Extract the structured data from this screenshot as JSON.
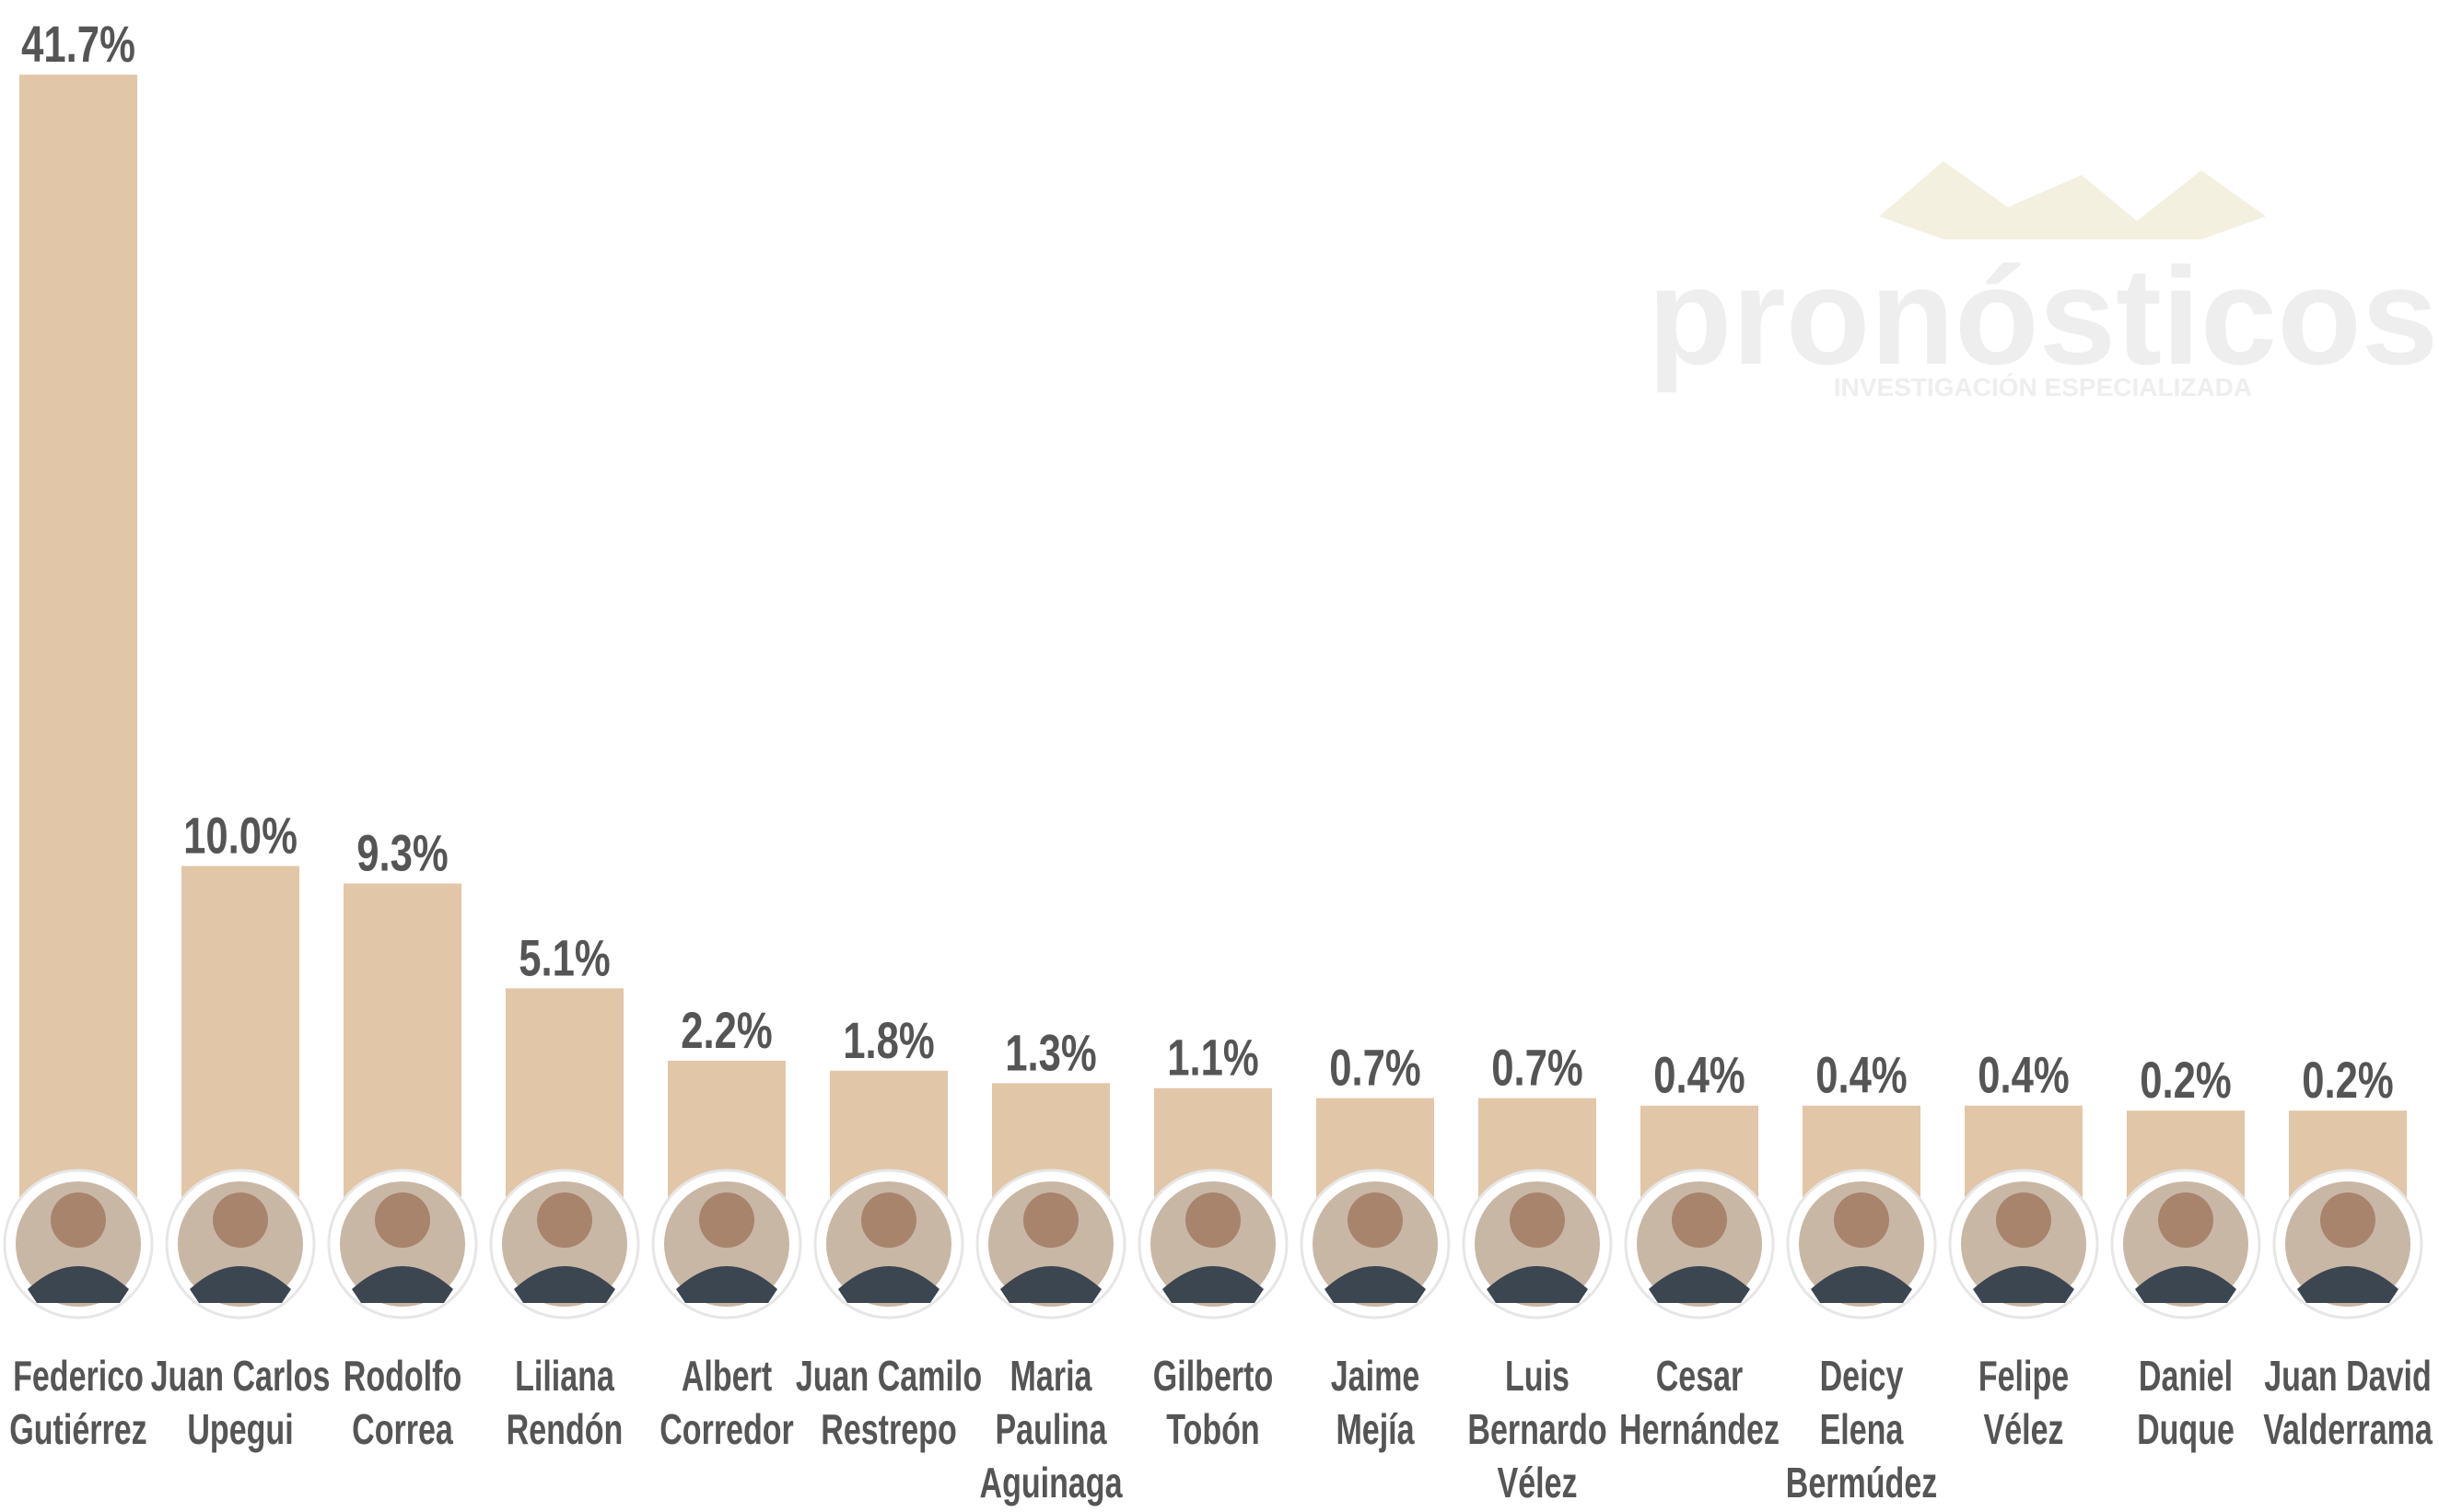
{
  "chart_data": {
    "type": "bar",
    "watermark": {
      "title": "pronósticos",
      "subtitle": "INVESTIGACIÓN ESPECIALIZADA"
    },
    "categories": [
      [
        "Federico",
        "Gutiérrez"
      ],
      [
        "Juan Carlos",
        "Upegui"
      ],
      [
        "Rodolfo",
        "Correa"
      ],
      [
        "Liliana",
        "Rendón"
      ],
      [
        "Albert",
        "Corredor"
      ],
      [
        "Juan Camilo",
        "Restrepo"
      ],
      [
        "Maria",
        "Paulina",
        "Aguinaga"
      ],
      [
        "Gilberto",
        "Tobón"
      ],
      [
        "Jaime",
        "Mejía"
      ],
      [
        "Luis",
        "Bernardo",
        "Vélez"
      ],
      [
        "Cesar",
        "Hernández"
      ],
      [
        "Deicy",
        "Elena",
        "Bermúdez"
      ],
      [
        "Felipe",
        "Vélez"
      ],
      [
        "Daniel",
        "Duque"
      ],
      [
        "Juan David",
        "Valderrama"
      ]
    ],
    "values": [
      41.7,
      10.0,
      9.3,
      5.1,
      2.2,
      1.8,
      1.3,
      1.1,
      0.7,
      0.7,
      0.4,
      0.4,
      0.4,
      0.2,
      0.2
    ],
    "value_labels": [
      "41.7%",
      "10.0%",
      "9.3%",
      "5.1%",
      "2.2%",
      "1.8%",
      "1.3%",
      "1.1%",
      "0.7%",
      "0.7%",
      "0.4%",
      "0.4%",
      "0.4%",
      "0.2%",
      "0.2%"
    ],
    "color": "#e2c6a8",
    "ylim": [
      -4,
      42
    ]
  }
}
